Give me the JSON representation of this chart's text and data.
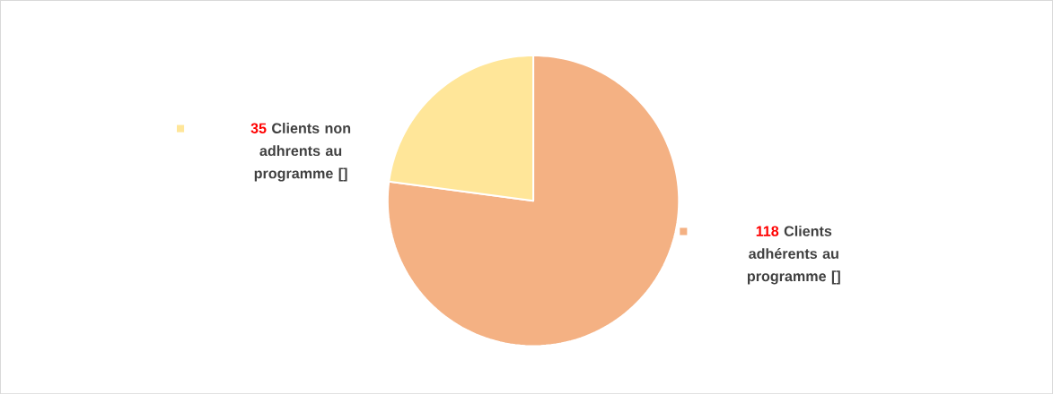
{
  "chart_data": {
    "type": "pie",
    "categories": [
      "Clients adhérents au programme []",
      "Clients non adhrents au programme []"
    ],
    "values": [
      118,
      35
    ],
    "colors": [
      "#f4b183",
      "#ffe699"
    ],
    "data_labels": true
  }
}
